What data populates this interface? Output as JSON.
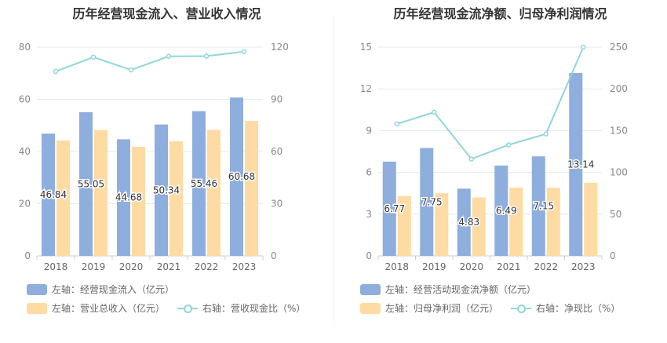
{
  "chart_data": [
    {
      "type": "bar",
      "title": "历年经营现金流入、营业收入情况",
      "categories": [
        "2018",
        "2019",
        "2020",
        "2021",
        "2022",
        "2023"
      ],
      "ylim_left": [
        0,
        80
      ],
      "left_ticks": [
        0,
        20,
        40,
        60,
        80
      ],
      "ylim_right": [
        0,
        120
      ],
      "right_ticks": [
        0,
        30,
        60,
        90,
        120
      ],
      "series": [
        {
          "name": "左轴：经营现金流入（亿元）",
          "axis": "left",
          "kind": "bar",
          "color": "#8eaedd",
          "values": [
            46.84,
            55.05,
            44.68,
            50.34,
            55.46,
            60.68
          ],
          "labels": [
            "46.84",
            "55.05",
            "44.68",
            "50.34",
            "55.46",
            "60.68"
          ]
        },
        {
          "name": "左轴：营业总收入（亿元）",
          "axis": "left",
          "kind": "bar",
          "color": "#fddba2",
          "values": [
            44.2,
            48.2,
            41.8,
            43.9,
            48.3,
            51.7
          ]
        },
        {
          "name": "右轴：营收现金比（%）",
          "axis": "right",
          "kind": "line",
          "color": "#8fd6dc",
          "values": [
            106.0,
            114.2,
            106.9,
            114.7,
            114.8,
            117.4
          ]
        }
      ],
      "grid": true,
      "legend_position": "bottom-left"
    },
    {
      "type": "bar",
      "title": "历年经营现金流净额、归母净利润情况",
      "categories": [
        "2018",
        "2019",
        "2020",
        "2021",
        "2022",
        "2023"
      ],
      "ylim_left": [
        0,
        15
      ],
      "left_ticks": [
        0,
        3,
        6,
        9,
        12,
        15
      ],
      "ylim_right": [
        0,
        250
      ],
      "right_ticks": [
        0,
        50,
        100,
        150,
        200,
        250
      ],
      "series": [
        {
          "name": "左轴：经营活动现金流净额（亿元）",
          "axis": "left",
          "kind": "bar",
          "color": "#8eaedd",
          "values": [
            6.77,
            7.75,
            4.83,
            6.49,
            7.15,
            13.14
          ],
          "labels": [
            "6.77",
            "7.75",
            "4.83",
            "6.49",
            "7.15",
            "13.14"
          ]
        },
        {
          "name": "左轴：归母净利润（亿元）",
          "axis": "left",
          "kind": "bar",
          "color": "#fddba2",
          "values": [
            4.3,
            4.5,
            4.2,
            4.9,
            4.9,
            5.25
          ]
        },
        {
          "name": "右轴：净现比（%）",
          "axis": "right",
          "kind": "line",
          "color": "#8fd6dc",
          "values": [
            158,
            172,
            116,
            133,
            146,
            250
          ]
        }
      ],
      "grid": true,
      "legend_position": "bottom-left"
    }
  ]
}
